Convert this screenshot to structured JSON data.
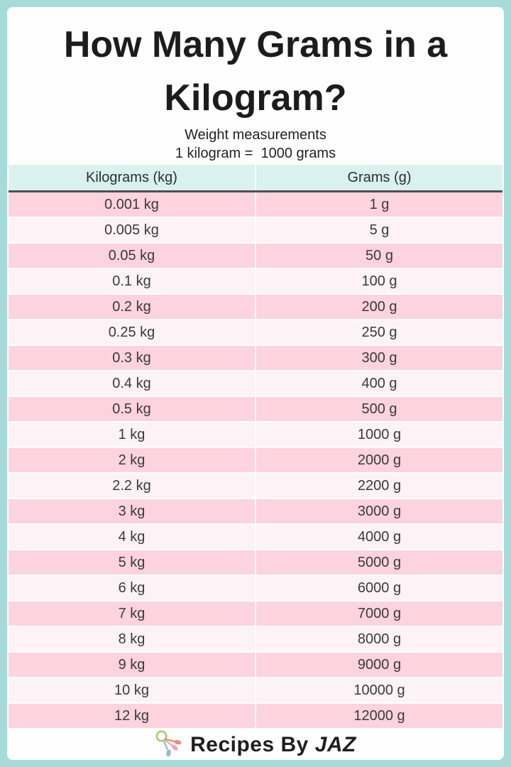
{
  "page": {
    "title": "How Many Grams in a Kilogram?",
    "subtitle1": "Weight measurements",
    "subtitle2": "1 kilogram =  1000 grams"
  },
  "table": {
    "headers": [
      "Kilograms (kg)",
      "Grams (g)"
    ],
    "rows": [
      {
        "kg": "0.001 kg",
        "g": "1 g"
      },
      {
        "kg": "0.005 kg",
        "g": "5 g"
      },
      {
        "kg": "0.05 kg",
        "g": "50 g"
      },
      {
        "kg": "0.1 kg",
        "g": "100 g"
      },
      {
        "kg": "0.2 kg",
        "g": "200 g"
      },
      {
        "kg": "0.25 kg",
        "g": "250 g"
      },
      {
        "kg": "0.3 kg",
        "g": "300 g"
      },
      {
        "kg": "0.4 kg",
        "g": "400 g"
      },
      {
        "kg": "0.5 kg",
        "g": "500 g"
      },
      {
        "kg": "1 kg",
        "g": "1000 g"
      },
      {
        "kg": "2 kg",
        "g": "2000 g"
      },
      {
        "kg": "2.2 kg",
        "g": "2200 g"
      },
      {
        "kg": "3 kg",
        "g": "3000 g"
      },
      {
        "kg": "4 kg",
        "g": "4000 g"
      },
      {
        "kg": "5 kg",
        "g": "5000 g"
      },
      {
        "kg": "6 kg",
        "g": "6000 g"
      },
      {
        "kg": "7 kg",
        "g": "7000 g"
      },
      {
        "kg": "8 kg",
        "g": "8000 g"
      },
      {
        "kg": "9 kg",
        "g": "9000 g"
      },
      {
        "kg": "10 kg",
        "g": "10000 g"
      },
      {
        "kg": "12 kg",
        "g": "12000 g"
      }
    ]
  },
  "footer": {
    "brand_prefix": "Recipes By ",
    "brand_name": "JAZ",
    "logo_icon": "measuring-spoons-icon"
  },
  "colors": {
    "frame": "#a7dbd8",
    "panel": "#fefefe",
    "header_bg": "#d9f2f0",
    "row_pink": "#fcd3df",
    "row_light": "#fdf3f6",
    "header_divider": "#4f4f4f",
    "text": "#3a3a3a",
    "logo_ring_green": "#9fcb5f",
    "logo_spoon_salmon": "#ef8a70",
    "logo_spoon_pink": "#f0a3b5",
    "logo_spoon_teal": "#8fbfca"
  }
}
